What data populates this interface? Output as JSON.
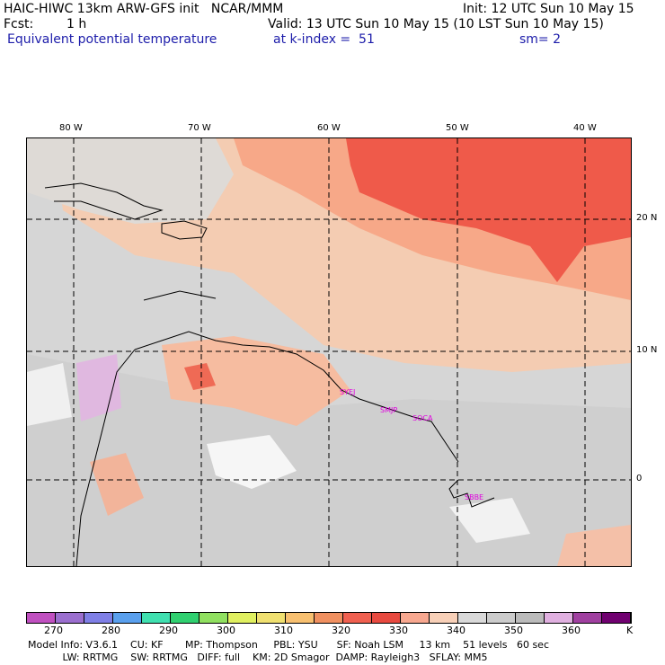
{
  "header": {
    "line1_left": "HAIC-HIWC 13km ARW-GFS init   NCAR/MMM",
    "line1_right": "Init: 12 UTC Sun 10 May 15",
    "fcst_label": "Fcst:",
    "fcst_value": "1 h",
    "valid": "Valid: 13 UTC Sun 10 May 15 (10 LST Sun 10 May 15)",
    "field_name": "Equivalent potential temperature",
    "level": "at k-index =  51",
    "smoothing": "sm= 2"
  },
  "map": {
    "lon_labels": [
      "80 W",
      "70 W",
      "60 W",
      "50 W",
      "40 W"
    ],
    "lat_labels": [
      "20 N",
      "10 N",
      "0"
    ],
    "stations": [
      "SYEJ",
      "SMJP",
      "SOCA",
      "SBBE"
    ]
  },
  "colorbar": {
    "unit": "K",
    "ticks": [
      "270",
      "280",
      "290",
      "300",
      "310",
      "320",
      "330",
      "340",
      "350",
      "360"
    ],
    "colors": [
      "#c050c0",
      "#9b6fcf",
      "#7f7fe6",
      "#5aa0ee",
      "#40e0b0",
      "#30d070",
      "#90e060",
      "#e0f060",
      "#f0e070",
      "#f8c070",
      "#f09060",
      "#f06050",
      "#e84a40",
      "#f8a890",
      "#f8d0b8",
      "#d9d9d9",
      "#cccccc",
      "#bbbbbb",
      "#e0b0e0",
      "#a040a0",
      "#700070"
    ]
  },
  "footer": {
    "line1": "Model Info: V3.6.1    CU: KF       MP: Thompson     PBL: YSU      SF: Noah LSM     13 km    51 levels   60 sec",
    "line2": "           LW: RRTMG    SW: RRTMG   DIFF: full    KM: 2D Smagor  DAMP: Rayleigh3   SFLAY: MM5"
  }
}
